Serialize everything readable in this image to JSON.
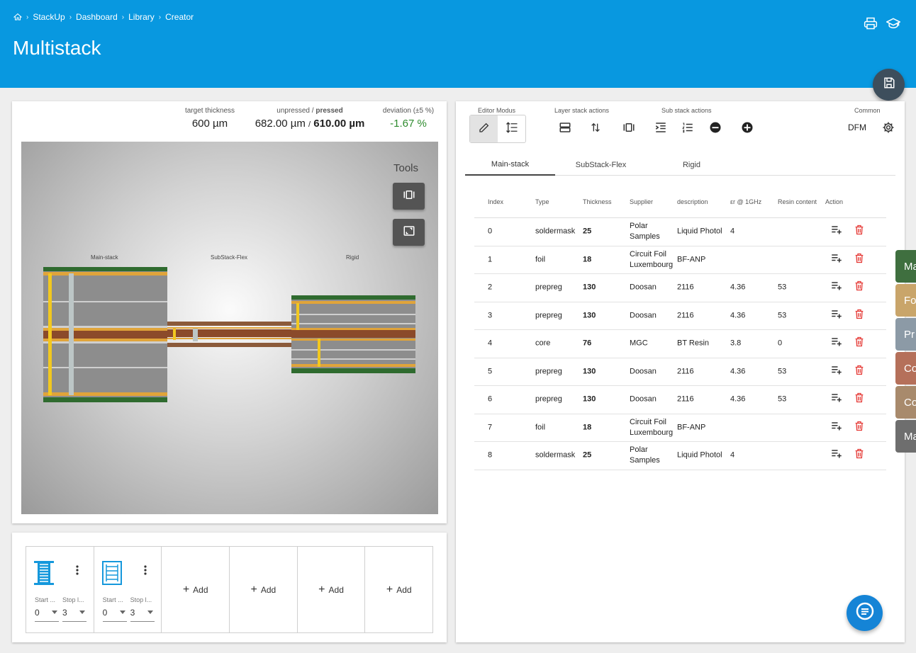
{
  "header": {
    "breadcrumb": [
      "StackUp",
      "Dashboard",
      "Library",
      "Creator"
    ],
    "title": "Multistack",
    "icons": [
      "home-icon",
      "print-icon",
      "school-icon"
    ]
  },
  "save_fab": {
    "icon": "save-icon"
  },
  "thickness": {
    "target_label": "target thickness",
    "target_value": "600 µm",
    "unpressed_label": "unpressed /",
    "pressed_label": "pressed",
    "unpressed_value": "682.00 µm",
    "slash": "/",
    "pressed_value": "610.00 µm",
    "deviation_label": "deviation (±5 %)",
    "deviation_value": "-1.67 %",
    "deviation_color": "#2e8b2e"
  },
  "canvas": {
    "tools_label": "Tools",
    "tool_icons": [
      "compress-icon",
      "fit-screen-icon"
    ],
    "stack_labels": [
      "Main-stack",
      "SubStack-Flex",
      "Rigid"
    ]
  },
  "substack_editor": {
    "substacks": [
      {
        "icon": "layer-stack-icon",
        "start_label": "Start ...",
        "stop_label": "Stop l...",
        "start_value": "0",
        "stop_value": "3"
      },
      {
        "icon": "layer-stack-outline-icon",
        "start_label": "Start ...",
        "stop_label": "Stop l...",
        "start_value": "0",
        "stop_value": "3"
      }
    ],
    "add_label": "Add"
  },
  "toolbar": {
    "editor_mode_label": "Editor Modus",
    "layer_actions_label": "Layer stack actions",
    "sub_actions_label": "Sub stack actions",
    "common_label": "Common",
    "dfm_label": "DFM"
  },
  "tabs": [
    "Main-stack",
    "SubStack-Flex",
    "Rigid"
  ],
  "table": {
    "headers": [
      "Index",
      "Type",
      "Thickness",
      "Supplier",
      "description",
      "εr @ 1GHz",
      "Resin content",
      "Action"
    ],
    "rows": [
      {
        "index": "0",
        "type": "soldermask",
        "thickness": "25",
        "supplier": "Polar Samples",
        "description": "Liquid Photol",
        "er": "4",
        "resin": ""
      },
      {
        "index": "1",
        "type": "foil",
        "thickness": "18",
        "supplier": "Circuit Foil Luxembourg",
        "description": "BF-ANP",
        "er": "",
        "resin": ""
      },
      {
        "index": "2",
        "type": "prepreg",
        "thickness": "130",
        "supplier": "Doosan",
        "description": "2116",
        "er": "4.36",
        "resin": "53"
      },
      {
        "index": "3",
        "type": "prepreg",
        "thickness": "130",
        "supplier": "Doosan",
        "description": "2116",
        "er": "4.36",
        "resin": "53"
      },
      {
        "index": "4",
        "type": "core",
        "thickness": "76",
        "supplier": "MGC",
        "description": "BT Resin",
        "er": "3.8",
        "resin": "0"
      },
      {
        "index": "5",
        "type": "prepreg",
        "thickness": "130",
        "supplier": "Doosan",
        "description": "2116",
        "er": "4.36",
        "resin": "53"
      },
      {
        "index": "6",
        "type": "prepreg",
        "thickness": "130",
        "supplier": "Doosan",
        "description": "2116",
        "er": "4.36",
        "resin": "53"
      },
      {
        "index": "7",
        "type": "foil",
        "thickness": "18",
        "supplier": "Circuit Foil Luxembourg",
        "description": "BF-ANP",
        "er": "",
        "resin": ""
      },
      {
        "index": "8",
        "type": "soldermask",
        "thickness": "25",
        "supplier": "Polar Samples",
        "description": "Liquid Photol",
        "er": "4",
        "resin": ""
      }
    ]
  },
  "side_tabs": [
    {
      "label": "Ma",
      "color": "#3f6f3f"
    },
    {
      "label": "Fo",
      "color": "#c9a56a"
    },
    {
      "label": "Pr",
      "color": "#8c9aa6"
    },
    {
      "label": "Co",
      "color": "#b5705a"
    },
    {
      "label": "Co",
      "color": "#a88a6c"
    },
    {
      "label": "Ma",
      "color": "#6e6e6e"
    }
  ],
  "chat_fab": {
    "icon": "chat-icon"
  }
}
